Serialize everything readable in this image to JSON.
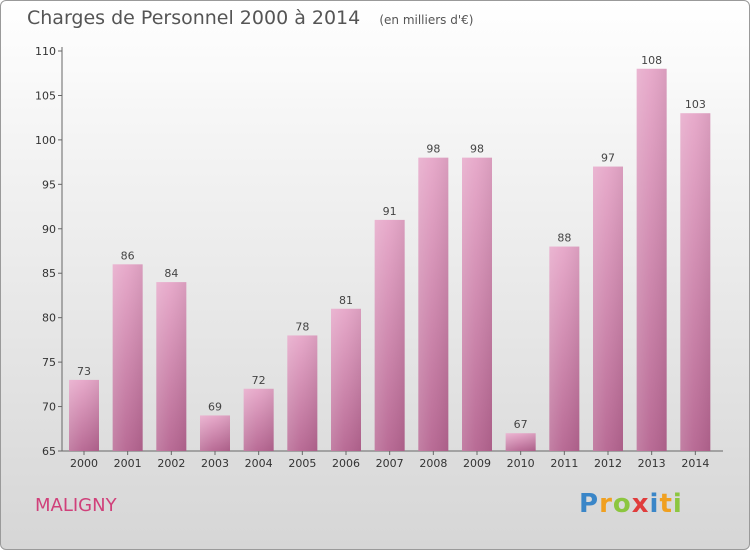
{
  "chart_data": {
    "type": "bar",
    "title": "Charges de Personnel 2000 à 2014",
    "unit_note": "(en milliers d'€)",
    "categories": [
      "2000",
      "2001",
      "2002",
      "2003",
      "2004",
      "2005",
      "2006",
      "2007",
      "2008",
      "2009",
      "2010",
      "2011",
      "2012",
      "2013",
      "2014"
    ],
    "values": [
      73,
      86,
      84,
      69,
      72,
      78,
      81,
      91,
      98,
      98,
      67,
      88,
      97,
      108,
      103
    ],
    "ylim": [
      65,
      110
    ],
    "yticks": [
      65,
      70,
      75,
      80,
      85,
      90,
      95,
      100,
      105,
      110
    ],
    "xlabel": "",
    "ylabel": "",
    "grid": false,
    "bar_color": "#d882ae"
  },
  "footer": {
    "commune": "MALIGNY",
    "brand_letters": [
      {
        "ch": "P",
        "color": "#3a86c8"
      },
      {
        "ch": "r",
        "color": "#f0a020"
      },
      {
        "ch": "o",
        "color": "#8cc63f"
      },
      {
        "ch": "x",
        "color": "#e03c3c"
      },
      {
        "ch": "i",
        "color": "#3a86c8"
      },
      {
        "ch": "t",
        "color": "#f0a020"
      },
      {
        "ch": "i",
        "color": "#8cc63f"
      }
    ]
  }
}
